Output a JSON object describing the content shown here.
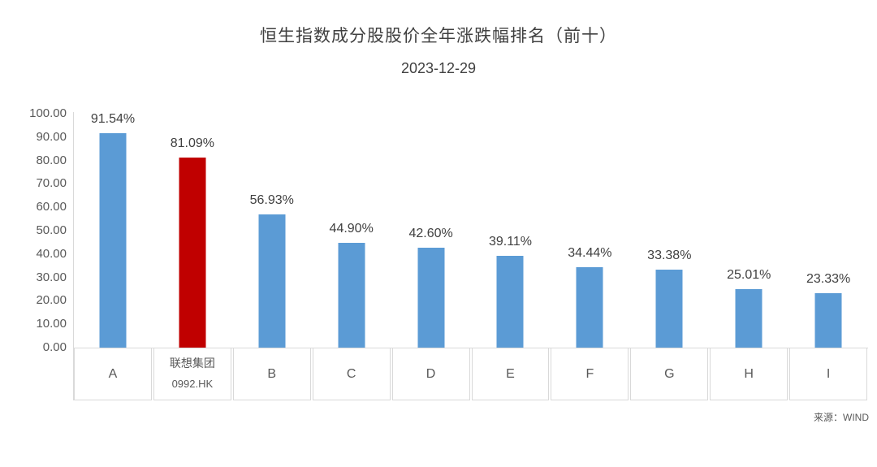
{
  "chart_data": {
    "type": "bar",
    "title": "恒生指数成分股股价全年涨跌幅排名（前十）",
    "subtitle": "2023-12-29",
    "source": "来源：WIND",
    "categories": [
      [
        "A"
      ],
      [
        "联想集团",
        "0992.HK"
      ],
      [
        "B"
      ],
      [
        "C"
      ],
      [
        "D"
      ],
      [
        "E"
      ],
      [
        "F"
      ],
      [
        "G"
      ],
      [
        "H"
      ],
      [
        "I"
      ]
    ],
    "values": [
      91.54,
      81.09,
      56.93,
      44.9,
      42.6,
      39.11,
      34.44,
      33.38,
      25.01,
      23.33
    ],
    "value_labels": [
      "91.54%",
      "81.09%",
      "56.93%",
      "44.90%",
      "42.60%",
      "39.11%",
      "34.44%",
      "33.38%",
      "25.01%",
      "23.33%"
    ],
    "highlight_index": 1,
    "ylim": [
      0,
      100
    ],
    "yticks": [
      "100.00",
      "90.00",
      "80.00",
      "70.00",
      "60.00",
      "50.00",
      "40.00",
      "30.00",
      "20.00",
      "10.00",
      "0.00"
    ],
    "grid": "off",
    "legend": "none",
    "colors": {
      "bar": "#5B9BD5",
      "highlight_bar": "#C00000",
      "axis_line": "#D9D9D9",
      "label_text": "#404040",
      "tick_text": "#595959"
    }
  }
}
